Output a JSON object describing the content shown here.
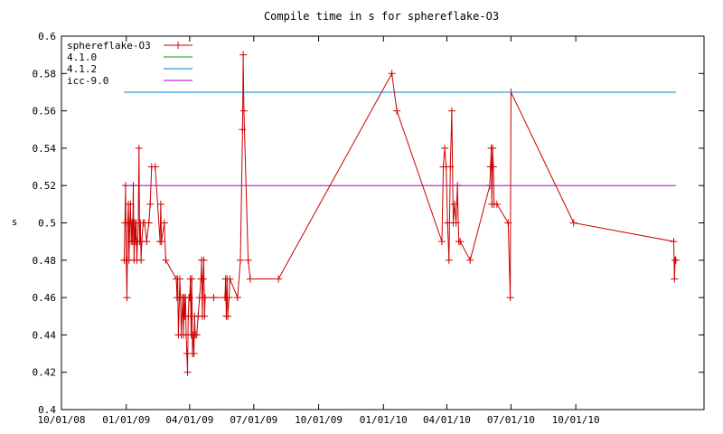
{
  "chart_data": {
    "type": "line",
    "title": "Compile time in s for sphereflake-O3",
    "ylabel": "s",
    "xlabel": "",
    "ylim": [
      0.4,
      0.6
    ],
    "xlim": [
      "2008-10-01",
      "2011-04-01"
    ],
    "yticks": [
      "0.4",
      "0.42",
      "0.44",
      "0.46",
      "0.48",
      "0.5",
      "0.52",
      "0.54",
      "0.56",
      "0.58",
      "0.6"
    ],
    "xticks": [
      {
        "label": "10/01/08",
        "date": "2008-10-01"
      },
      {
        "label": "01/01/09",
        "date": "2009-01-01"
      },
      {
        "label": "04/01/09",
        "date": "2009-04-01"
      },
      {
        "label": "07/01/09",
        "date": "2009-07-01"
      },
      {
        "label": "10/01/09",
        "date": "2009-10-01"
      },
      {
        "label": "01/01/10",
        "date": "2010-01-01"
      },
      {
        "label": "04/01/10",
        "date": "2010-04-01"
      },
      {
        "label": "07/01/10",
        "date": "2010-07-01"
      },
      {
        "label": "10/01/10",
        "date": "2010-10-01"
      }
    ],
    "grid": false,
    "legend_position": "top-left",
    "series": [
      {
        "name": "sphereflake-O3",
        "color": "#cc0000",
        "marker": "plus",
        "points": [
          [
            "2008-12-29",
            0.48
          ],
          [
            "2008-12-30",
            0.5
          ],
          [
            "2008-12-31",
            0.52
          ],
          [
            "2009-01-01",
            0.48
          ],
          [
            "2009-01-02",
            0.46
          ],
          [
            "2009-01-03",
            0.5
          ],
          [
            "2009-01-04",
            0.51
          ],
          [
            "2009-01-05",
            0.48
          ],
          [
            "2009-01-06",
            0.5
          ],
          [
            "2009-01-07",
            0.51
          ],
          [
            "2009-01-08",
            0.49
          ],
          [
            "2009-01-09",
            0.5
          ],
          [
            "2009-01-10",
            0.49
          ],
          [
            "2009-01-11",
            0.52
          ],
          [
            "2009-01-12",
            0.48
          ],
          [
            "2009-01-13",
            0.5
          ],
          [
            "2009-01-14",
            0.49
          ],
          [
            "2009-01-15",
            0.5
          ],
          [
            "2009-01-16",
            0.48
          ],
          [
            "2009-01-17",
            0.49
          ],
          [
            "2009-01-18",
            0.5
          ],
          [
            "2009-01-19",
            0.54
          ],
          [
            "2009-01-20",
            0.49
          ],
          [
            "2009-01-21",
            0.5
          ],
          [
            "2009-01-22",
            0.48
          ],
          [
            "2009-01-23",
            0.49
          ],
          [
            "2009-01-25",
            0.5
          ],
          [
            "2009-01-27",
            0.5
          ],
          [
            "2009-01-30",
            0.49
          ],
          [
            "2009-02-02",
            0.5
          ],
          [
            "2009-02-04",
            0.51
          ],
          [
            "2009-02-06",
            0.53
          ],
          [
            "2009-02-11",
            0.53
          ],
          [
            "2009-02-18",
            0.49
          ],
          [
            "2009-02-19",
            0.51
          ],
          [
            "2009-02-20",
            0.49
          ],
          [
            "2009-02-24",
            0.5
          ],
          [
            "2009-02-26",
            0.48
          ],
          [
            "2009-03-13",
            0.47
          ],
          [
            "2009-03-14",
            0.46
          ],
          [
            "2009-03-15",
            0.47
          ],
          [
            "2009-03-16",
            0.44
          ],
          [
            "2009-03-18",
            0.47
          ],
          [
            "2009-03-19",
            0.46
          ],
          [
            "2009-03-20",
            0.44
          ],
          [
            "2009-03-22",
            0.46
          ],
          [
            "2009-03-23",
            0.44
          ],
          [
            "2009-03-24",
            0.46
          ],
          [
            "2009-03-25",
            0.45
          ],
          [
            "2009-03-26",
            0.46
          ],
          [
            "2009-03-27",
            0.44
          ],
          [
            "2009-03-28",
            0.43
          ],
          [
            "2009-03-29",
            0.42
          ],
          [
            "2009-03-30",
            0.45
          ],
          [
            "2009-03-31",
            0.46
          ],
          [
            "2009-04-01",
            0.46
          ],
          [
            "2009-04-02",
            0.47
          ],
          [
            "2009-04-03",
            0.44
          ],
          [
            "2009-04-04",
            0.47
          ],
          [
            "2009-04-05",
            0.43
          ],
          [
            "2009-04-06",
            0.44
          ],
          [
            "2009-04-07",
            0.43
          ],
          [
            "2009-04-08",
            0.45
          ],
          [
            "2009-04-09",
            0.44
          ],
          [
            "2009-04-11",
            0.44
          ],
          [
            "2009-04-13",
            0.45
          ],
          [
            "2009-04-15",
            0.46
          ],
          [
            "2009-04-17",
            0.47
          ],
          [
            "2009-04-18",
            0.48
          ],
          [
            "2009-04-19",
            0.45
          ],
          [
            "2009-04-20",
            0.47
          ],
          [
            "2009-04-21",
            0.48
          ],
          [
            "2009-04-22",
            0.45
          ],
          [
            "2009-04-23",
            0.46
          ],
          [
            "2009-05-05",
            0.46
          ],
          [
            "2009-05-21",
            0.46
          ],
          [
            "2009-05-22",
            0.47
          ],
          [
            "2009-05-23",
            0.45
          ],
          [
            "2009-05-24",
            0.47
          ],
          [
            "2009-05-25",
            0.45
          ],
          [
            "2009-05-27",
            0.46
          ],
          [
            "2009-05-28",
            0.47
          ],
          [
            "2009-06-08",
            0.46
          ],
          [
            "2009-06-12",
            0.48
          ],
          [
            "2009-06-15",
            0.55
          ],
          [
            "2009-06-16",
            0.59
          ],
          [
            "2009-06-17",
            0.56
          ],
          [
            "2009-06-23",
            0.48
          ],
          [
            "2009-06-26",
            0.47
          ],
          [
            "2009-08-05",
            0.47
          ],
          [
            "2010-01-13",
            0.58
          ],
          [
            "2010-01-20",
            0.56
          ],
          [
            "2010-03-25",
            0.49
          ],
          [
            "2010-03-27",
            0.53
          ],
          [
            "2010-03-29",
            0.54
          ],
          [
            "2010-03-31",
            0.53
          ],
          [
            "2010-04-02",
            0.5
          ],
          [
            "2010-04-04",
            0.48
          ],
          [
            "2010-04-06",
            0.53
          ],
          [
            "2010-04-08",
            0.56
          ],
          [
            "2010-04-10",
            0.5
          ],
          [
            "2010-04-12",
            0.51
          ],
          [
            "2010-04-14",
            0.5
          ],
          [
            "2010-04-16",
            0.52
          ],
          [
            "2010-04-18",
            0.49
          ],
          [
            "2010-04-20",
            0.49
          ],
          [
            "2010-05-04",
            0.48
          ],
          [
            "2010-06-01",
            0.52
          ],
          [
            "2010-06-02",
            0.53
          ],
          [
            "2010-06-03",
            0.54
          ],
          [
            "2010-06-04",
            0.51
          ],
          [
            "2010-06-05",
            0.54
          ],
          [
            "2010-06-06",
            0.53
          ],
          [
            "2010-06-07",
            0.51
          ],
          [
            "2010-06-11",
            0.51
          ],
          [
            "2010-06-27",
            0.5
          ],
          [
            "2010-06-30",
            0.46
          ],
          [
            "2010-07-01",
            0.57
          ],
          [
            "2010-09-28",
            0.5
          ],
          [
            "2011-02-17",
            0.49
          ],
          [
            "2011-02-18",
            0.47
          ],
          [
            "2011-02-19",
            0.48
          ],
          [
            "2011-02-20",
            0.48
          ]
        ]
      },
      {
        "name": "4.1.0",
        "color": "#00a000",
        "marker": "none",
        "points": []
      },
      {
        "name": "4.1.2",
        "color": "#0080d0",
        "marker": "none",
        "points": [
          [
            "2008-12-29",
            0.57
          ],
          [
            "2011-02-20",
            0.57
          ]
        ]
      },
      {
        "name": "icc-9.0",
        "color": "#b000c0",
        "marker": "none",
        "points": [
          [
            "2008-12-29",
            0.52
          ],
          [
            "2011-02-20",
            0.52
          ]
        ]
      }
    ]
  }
}
